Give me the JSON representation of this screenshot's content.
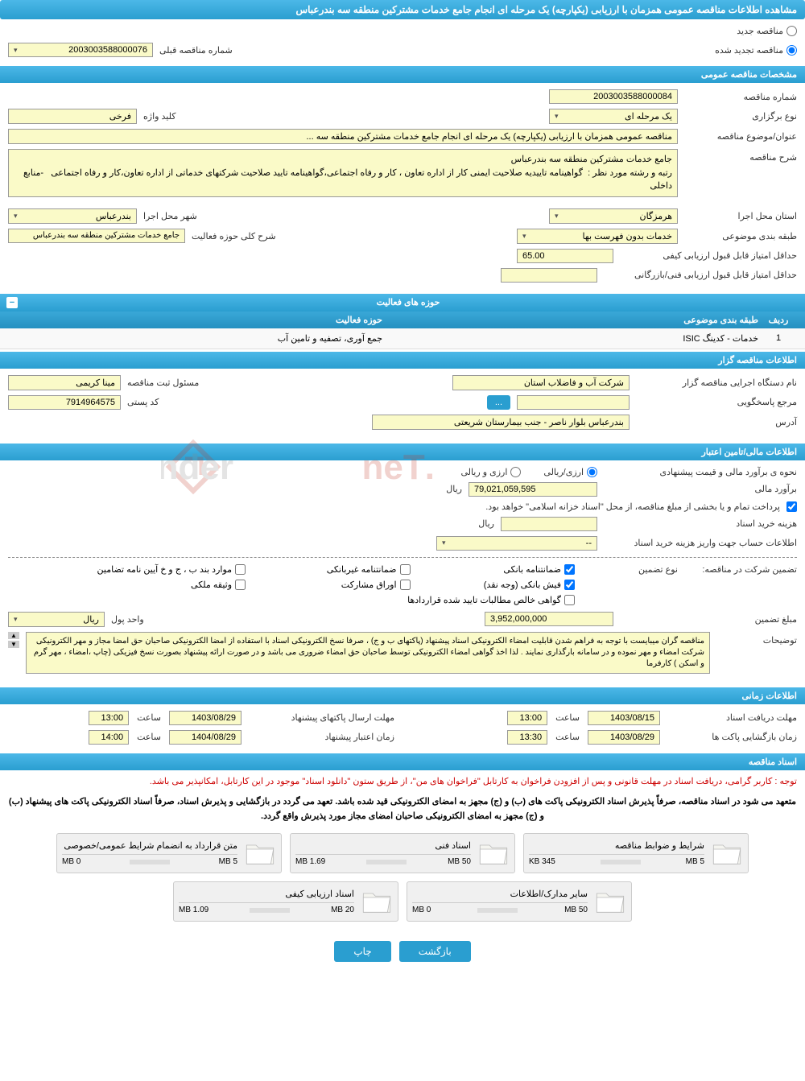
{
  "header": {
    "title": "مشاهده اطلاعات مناقصه عمومی همزمان با ارزیابی (یکپارچه) یک مرحله ای انجام جامع خدمات مشترکین منطقه سه بندرعباس"
  },
  "tender_type": {
    "new": "مناقصه جدید",
    "renewed": "مناقصه تجدید شده",
    "selected": "renewed",
    "prev_number_label": "شماره مناقصه قبلی",
    "prev_number": "2003003588000076"
  },
  "general": {
    "section_title": "مشخصات مناقصه عمومی",
    "tender_number_label": "شماره مناقصه",
    "tender_number": "2003003588000084",
    "holding_type_label": "نوع برگزاری",
    "holding_type": "یک مرحله ای",
    "keyword_label": "کلید واژه",
    "keyword": "فرخی",
    "title_label": "عنوان/موضوع مناقصه",
    "title_value": "مناقصه عمومی همزمان با ارزیابی (یکپارچه) یک مرحله ای انجام جامع خدمات مشترکین منطقه سه ...",
    "description_label": "شرح مناقصه",
    "description_value": "جامع خدمات مشترکین منطقه سه بندرعباس\nرتبه و رشته مورد نظر :  گواهینامه تاییدیه صلاحیت ایمنی کار از اداره تعاون ، کار و رفاه اجتماعی،گواهینامه تایید صلاحیت شرکتهای خدماتی از اداره تعاون،کار و رفاه اجتماعی   -منابع داخلی",
    "province_label": "استان محل اجرا",
    "province": "هرمزگان",
    "city_label": "شهر محل اجرا",
    "city": "بندرعباس",
    "category_label": "طبقه بندی موضوعی",
    "category": "خدمات بدون فهرست بها",
    "activity_scope_label": "شرح کلی حوزه فعالیت",
    "activity_scope": "جامع خدمات مشترکین منطقه سه بندرعباس",
    "min_quality_score_label": "حداقل امتیاز قابل قبول ارزیابی کیفی",
    "min_quality_score": "65.00",
    "min_tech_score_label": "حداقل امتیاز قابل قبول ارزیابی فنی/بازرگانی",
    "min_tech_score": ""
  },
  "activities": {
    "table_title": "حوزه های فعالیت",
    "col_idx": "ردیف",
    "col_category": "طبقه بندی موضوعی",
    "col_activity": "حوزه فعالیت",
    "rows": [
      {
        "idx": "1",
        "category": "خدمات - کدینگ ISIC",
        "activity": "جمع آوری، تصفیه و تامین آب"
      }
    ]
  },
  "organizer": {
    "section_title": "اطلاعات مناقصه گزار",
    "org_label": "نام دستگاه اجرایی مناقصه گزار",
    "org_value": "شرکت آب و فاضلاب استان",
    "registrar_label": "مسئول ثبت مناقصه",
    "registrar_value": "مینا کریمی",
    "responder_label": "مرجع پاسخگویی",
    "responder_value": "",
    "postal_label": "کد پستی",
    "postal_value": "7914964575",
    "address_label": "آدرس",
    "address_value": "بندرعباس بلوار ناصر - جنب بیمارستان شریعتی"
  },
  "financial": {
    "section_title": "اطلاعات مالی/تامین اعتبار",
    "estimate_method_label": "نحوه ی برآورد مالی و قیمت پیشنهادی",
    "method_currency": "ارزی/ریالی",
    "method_both": "ارزی و ریالی",
    "estimate_label": "برآورد مالی",
    "estimate_value": "79,021,059,595",
    "currency": "ریال",
    "treasury_note": "پرداخت تمام و یا بخشی از مبلغ مناقصه، از محل \"اسناد خزانه اسلامی\" خواهد بود.",
    "purchase_cost_label": "هزینه خرید اسناد",
    "purchase_cost_value": "",
    "account_info_label": "اطلاعات حساب جهت واریز هزینه خرید اسناد",
    "account_info_value": "--"
  },
  "guarantee": {
    "prefix_label": "تضمین شرکت در مناقصه:",
    "type_label": "نوع تضمین",
    "opt_bank_guarantee": "ضمانتنامه بانکی",
    "opt_nonbank_guarantee": "ضمانتنامه غیربانکی",
    "opt_regulation": "موارد بند ب ، ج و خ آیین نامه تضامین",
    "opt_cash": "فیش بانکی (وجه نقد)",
    "opt_bonds": "اوراق مشارکت",
    "opt_property": "وثیقه ملکی",
    "opt_receivables": "گواهی خالص مطالبات تایید شده قراردادها",
    "amount_label": "مبلغ تضمین",
    "amount_value": "3,952,000,000",
    "unit_label": "واحد پول",
    "unit_value": "ریال",
    "notes_label": "توضیحات",
    "notes_value": "مناقصه گران میبایست با توجه به فراهم شدن قابلیت امضاء الکترونیکی اسناد پیشنهاد (پاکتهای ب و ج) ، صرفا نسخ الکترونیکی اسناد با استفاده از امضا الکترونیکی صاحبان حق امضا مجاز و مهر الکترونیکی شرکت امضاء و مهر نموده و در سامانه بارگذاری نمایند . لذا اخذ گواهی امضاء الکترونیکی توسط صاحبان حق امضاء ضروری می باشد و در صورت ارائه پیشنهاد بصورت نسخ فیزیکی (چاپ ،امضاء ، مهر گرم و اسکن ) کارفرما"
  },
  "timing": {
    "section_title": "اطلاعات زمانی",
    "receive_deadline_label": "مهلت دریافت اسناد",
    "receive_deadline_date": "1403/08/15",
    "receive_deadline_time": "13:00",
    "send_deadline_label": "مهلت ارسال پاکتهای پیشنهاد",
    "send_deadline_date": "1403/08/29",
    "send_deadline_time": "13:00",
    "opening_label": "زمان بازگشایی پاکت ها",
    "opening_date": "1403/08/29",
    "opening_time": "13:30",
    "validity_label": "زمان اعتبار پیشنهاد",
    "validity_date": "1404/08/29",
    "validity_time": "14:00",
    "time_word": "ساعت"
  },
  "documents": {
    "section_title": "اسناد مناقصه",
    "notice1": "توجه : کاربر گرامی، دریافت اسناد در مهلت قانونی و پس از افزودن فراخوان به کارتابل \"فراخوان های من\"، از طریق ستون \"دانلود اسناد\" موجود در این کارتابل، امکانپذیر می باشد.",
    "notice2": "متعهد می شود در اسناد مناقصه، صرفاً پذیرش اسناد الکترونیکی پاکت های (ب) و (ج) مجهز به امضای الکترونیکی قید شده باشد. تعهد می گردد در بازگشایی و پذیرش اسناد، صرفاً اسناد الکترونیکی پاکت های پیشنهاد (ب) و (ج) مجهز به امضای الکترونیکی صاحبان امضای مجاز مورد پذیرش واقع گردد.",
    "files": [
      {
        "title": "شرایط و ضوابط مناقصه",
        "used": "345 KB",
        "cap": "5 MB",
        "pct": 7
      },
      {
        "title": "اسناد فنی",
        "used": "1.69 MB",
        "cap": "50 MB",
        "pct": 4
      },
      {
        "title": "متن قرارداد به انضمام شرایط عمومی/خصوصی",
        "used": "0 MB",
        "cap": "5 MB",
        "pct": 0
      },
      {
        "title": "سایر مدارک/اطلاعات",
        "used": "0 MB",
        "cap": "50 MB",
        "pct": 0
      },
      {
        "title": "اسناد ارزیابی کیفی",
        "used": "1.09 MB",
        "cap": "20 MB",
        "pct": 6
      }
    ]
  },
  "buttons": {
    "back": "بازگشت",
    "print": "چاپ"
  },
  "colors": {
    "header_gradient_top": "#4cb8e8",
    "header_gradient_bottom": "#2a9ed0",
    "field_bg": "#fafac8",
    "notice_red": "#cc0000",
    "progress_green": "#6ab04c"
  }
}
